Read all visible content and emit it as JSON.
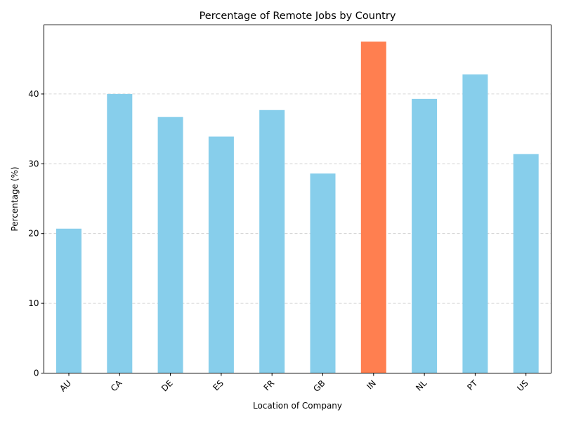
{
  "chart_data": {
    "type": "bar",
    "title": "Percentage of Remote Jobs by Country",
    "xlabel": "Location of Company",
    "ylabel": "Percentage (%)",
    "categories": [
      "AU",
      "CA",
      "DE",
      "ES",
      "FR",
      "GB",
      "IN",
      "NL",
      "PT",
      "US"
    ],
    "values": [
      20.7,
      40.0,
      36.7,
      33.9,
      37.7,
      28.6,
      47.5,
      39.3,
      42.8,
      31.4
    ],
    "highlight_category": "IN",
    "ylim": [
      0,
      49.9
    ],
    "yticks": [
      0,
      10,
      20,
      30,
      40
    ],
    "grid": "y-dashed",
    "colors": {
      "bar": "#87ceeb",
      "highlight": "#ff7f50",
      "grid": "#c8c8c8",
      "axis": "#000000"
    }
  }
}
